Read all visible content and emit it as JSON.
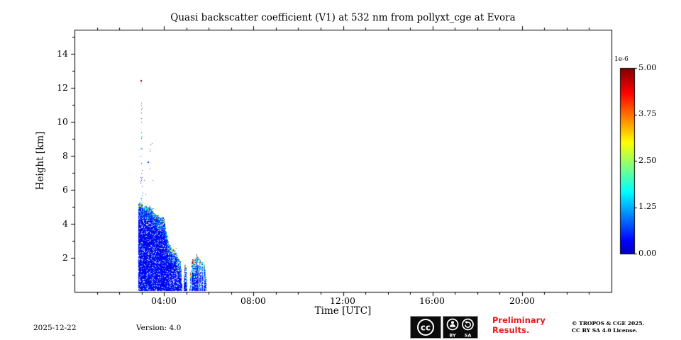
{
  "title": "Quasi backscatter coefficient (V1) at 532 nm from pollyxt_cge at Evora",
  "footer": {
    "date": "2025-12-22",
    "version": "Version: 4.0",
    "preliminary_line1": "Preliminary",
    "preliminary_line2": "Results.",
    "copyright_line1": "© TROPOS & CGE 2025.",
    "copyright_line2": "CC BY SA 4.0 License.",
    "license_badge": "CC BY-SA"
  },
  "colors": {
    "preliminary_red": "#e8191c",
    "axis_black": "#000000",
    "background": "#ffffff"
  },
  "chart_data": {
    "type": "heatmap",
    "title": "Quasi backscatter coefficient (V1) at 532 nm from pollyxt_cge at Evora",
    "xlabel": "Time [UTC]",
    "ylabel": "Height [km]",
    "xlim_hours": [
      0,
      24
    ],
    "ylim_km": [
      0,
      15.4
    ],
    "grid": false,
    "xticks": [
      {
        "hour": 4,
        "label": "04:00"
      },
      {
        "hour": 8,
        "label": "08:00"
      },
      {
        "hour": 12,
        "label": "12:00"
      },
      {
        "hour": 16,
        "label": "16:00"
      },
      {
        "hour": 20,
        "label": "20:00"
      }
    ],
    "yticks": [
      2,
      4,
      6,
      8,
      10,
      12,
      14
    ],
    "colorbar": {
      "exponent_label": "1e-6",
      "tick_labels": [
        "5.00",
        "3.75",
        "2.50",
        "1.25",
        "0.00"
      ],
      "vmin": 0,
      "vmax": 5,
      "units_scale": 1e-06,
      "colormap": "jet",
      "position": "right"
    },
    "features": {
      "description": "Aerosol/cloud backscatter signal between ~02:50 and ~05:55 UTC, mostly low values (blue) below a descending layer top from ~5.3 km down to ~1.5 km, with green/yellow/red flecks along the layer top; sparse dotted column near 03:00 reaching 12.4 km; rest of day has no data (white).",
      "boundary_profile": [
        [
          2.84,
          5.15
        ],
        [
          2.92,
          5.3
        ],
        [
          3.0,
          5.2
        ],
        [
          3.08,
          5.0
        ],
        [
          3.18,
          5.1
        ],
        [
          3.3,
          4.95
        ],
        [
          3.42,
          5.05
        ],
        [
          3.5,
          4.7
        ],
        [
          3.62,
          4.55
        ],
        [
          3.74,
          4.5
        ],
        [
          3.84,
          4.35
        ],
        [
          3.95,
          4.45
        ],
        [
          4.02,
          4.2
        ],
        [
          4.08,
          3.6
        ],
        [
          4.18,
          3.0
        ],
        [
          4.28,
          2.65
        ],
        [
          4.4,
          2.55
        ],
        [
          4.52,
          2.4
        ],
        [
          4.62,
          2.05
        ],
        [
          4.72,
          1.85
        ],
        [
          4.78,
          1.1
        ],
        [
          4.8,
          0
        ],
        [
          4.86,
          0
        ],
        [
          4.9,
          1.75
        ],
        [
          4.98,
          1.45
        ],
        [
          5.04,
          0
        ],
        [
          5.12,
          0
        ],
        [
          5.18,
          1.5
        ],
        [
          5.28,
          2.05
        ],
        [
          5.36,
          1.8
        ],
        [
          5.46,
          2.25
        ],
        [
          5.56,
          1.95
        ],
        [
          5.68,
          1.8
        ],
        [
          5.8,
          1.6
        ],
        [
          5.86,
          1.1
        ],
        [
          5.9,
          0
        ]
      ],
      "sparse_column": {
        "time": 2.97,
        "height_min": 5.4,
        "height_max": 12.4,
        "count": 55
      },
      "scatter_dots": {
        "t_min": 3.05,
        "t_max": 3.5,
        "h_min": 5.5,
        "h_max": 9.3,
        "count": 12
      },
      "notable_points": [
        {
          "time": 2.97,
          "height": 12.4,
          "value": 4.8
        },
        {
          "time": 3.02,
          "height": 9.1,
          "value": 2.2
        },
        {
          "time": 3.3,
          "height": 7.6,
          "value": 0.6
        }
      ]
    }
  }
}
